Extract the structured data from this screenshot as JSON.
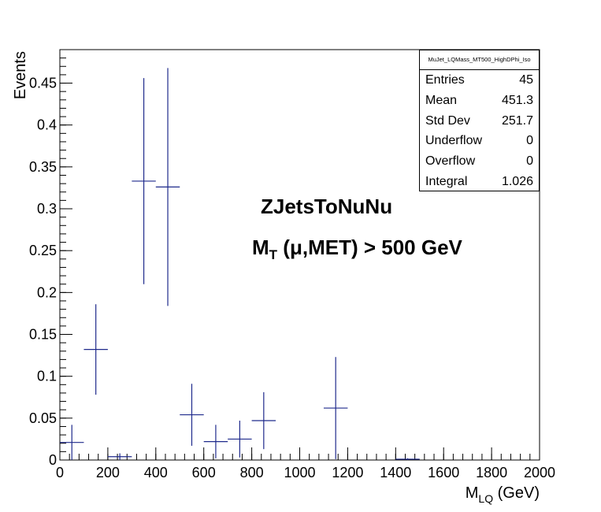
{
  "chart_data": {
    "type": "histogram",
    "title": "",
    "xlabel": "M",
    "xlabel_sub": "LQ",
    "xlabel_unit": " (GeV)",
    "ylabel": "Events",
    "xlim": [
      0,
      2000
    ],
    "ylim": [
      0,
      0.49
    ],
    "x_ticks": [
      0,
      200,
      400,
      600,
      800,
      1000,
      1200,
      1400,
      1600,
      1800,
      2000
    ],
    "y_ticks": [
      0,
      0.05,
      0.1,
      0.15,
      0.2,
      0.25,
      0.3,
      0.35,
      0.4,
      0.45
    ],
    "bin_width": 100,
    "bins": [
      {
        "x": 50,
        "y": 0.021,
        "err": 0.021
      },
      {
        "x": 150,
        "y": 0.132,
        "err": 0.054
      },
      {
        "x": 250,
        "y": 0.004,
        "err": 0.004
      },
      {
        "x": 350,
        "y": 0.333,
        "err": 0.123
      },
      {
        "x": 450,
        "y": 0.326,
        "err": 0.142
      },
      {
        "x": 550,
        "y": 0.054,
        "err": 0.037
      },
      {
        "x": 650,
        "y": 0.022,
        "err": 0.02
      },
      {
        "x": 750,
        "y": 0.025,
        "err": 0.022
      },
      {
        "x": 850,
        "y": 0.047,
        "err": 0.034
      },
      {
        "x": 1150,
        "y": 0.062,
        "err": 0.061
      },
      {
        "x": 1450,
        "y": 0.001,
        "err": 0.001
      }
    ],
    "line_color": "#1f2a8c",
    "grid": false
  },
  "stats_box": {
    "name": "MuJet_LQMass_MT500_HighDPhi_Iso",
    "rows": [
      {
        "label": "Entries",
        "value": "45"
      },
      {
        "label": "Mean",
        "value": "451.3"
      },
      {
        "label": "Std Dev",
        "value": "251.7"
      },
      {
        "label": "Underflow",
        "value": "0"
      },
      {
        "label": "Overflow",
        "value": "0"
      },
      {
        "label": "Integral",
        "value": "1.026"
      }
    ]
  },
  "annotations": {
    "sample": "ZJetsToNuNu",
    "cut_m": "M",
    "cut_sub": "T",
    "cut_rest": " (μ,MET) > 500 GeV"
  }
}
